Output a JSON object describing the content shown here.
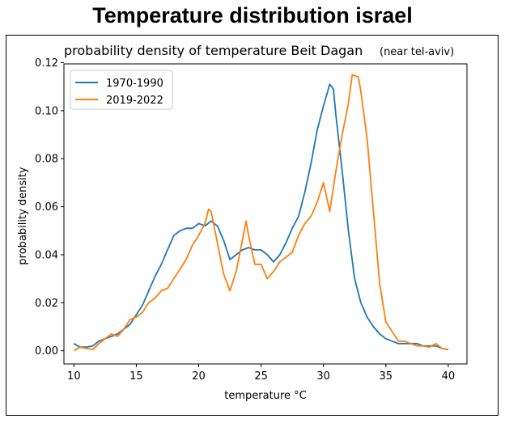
{
  "page": {
    "title": "Temperature distribution israel"
  },
  "chart_data": {
    "type": "line",
    "title": "probability density of temperature Beit Dagan",
    "subtitle_small": "(near tel-aviv)",
    "xlabel": "temperature °C",
    "ylabel": "probability density",
    "xlim": [
      9.2,
      41.5
    ],
    "ylim": [
      -0.0055,
      0.1195
    ],
    "xticks": [
      10,
      15,
      20,
      25,
      30,
      35,
      40
    ],
    "yticks": [
      0.0,
      0.02,
      0.04,
      0.06,
      0.08,
      0.1,
      0.12
    ],
    "ytick_labels": [
      "0.00",
      "0.02",
      "0.04",
      "0.06",
      "0.08",
      "0.10",
      "0.12"
    ],
    "grid": false,
    "legend_position": "top-left",
    "series": [
      {
        "name": "1970-1990",
        "color": "#1f77b4",
        "points": [
          [
            10,
            0.003
          ],
          [
            10.5,
            0.0015
          ],
          [
            11,
            0.0015
          ],
          [
            11.5,
            0.002
          ],
          [
            12,
            0.004
          ],
          [
            12.5,
            0.005
          ],
          [
            13,
            0.006
          ],
          [
            13.5,
            0.007
          ],
          [
            14,
            0.009
          ],
          [
            14.5,
            0.011
          ],
          [
            15,
            0.015
          ],
          [
            15.5,
            0.019
          ],
          [
            16,
            0.025
          ],
          [
            16.5,
            0.031
          ],
          [
            17,
            0.036
          ],
          [
            17.5,
            0.042
          ],
          [
            18,
            0.048
          ],
          [
            18.5,
            0.05
          ],
          [
            19,
            0.051
          ],
          [
            19.5,
            0.051
          ],
          [
            20,
            0.053
          ],
          [
            20.5,
            0.052
          ],
          [
            21,
            0.054
          ],
          [
            21.5,
            0.052
          ],
          [
            22,
            0.046
          ],
          [
            22.5,
            0.038
          ],
          [
            23,
            0.04
          ],
          [
            23.5,
            0.042
          ],
          [
            24,
            0.043
          ],
          [
            24.5,
            0.042
          ],
          [
            25,
            0.042
          ],
          [
            25.5,
            0.04
          ],
          [
            26,
            0.037
          ],
          [
            26.5,
            0.04
          ],
          [
            27,
            0.045
          ],
          [
            27.5,
            0.051
          ],
          [
            28,
            0.056
          ],
          [
            28.5,
            0.066
          ],
          [
            29,
            0.078
          ],
          [
            29.5,
            0.092
          ],
          [
            30,
            0.102
          ],
          [
            30.5,
            0.111
          ],
          [
            30.8,
            0.109
          ],
          [
            31,
            0.098
          ],
          [
            31.5,
            0.075
          ],
          [
            32,
            0.05
          ],
          [
            32.5,
            0.03
          ],
          [
            33,
            0.02
          ],
          [
            33.5,
            0.014
          ],
          [
            34,
            0.01
          ],
          [
            34.5,
            0.007
          ],
          [
            35,
            0.005
          ],
          [
            35.5,
            0.004
          ],
          [
            36,
            0.003
          ],
          [
            36.5,
            0.003
          ],
          [
            37,
            0.003
          ],
          [
            37.5,
            0.003
          ],
          [
            38,
            0.002
          ],
          [
            38.5,
            0.002
          ],
          [
            39,
            0.002
          ],
          [
            39.5,
            0.001
          ],
          [
            40,
            0.0005
          ]
        ]
      },
      {
        "name": "2019-2022",
        "color": "#ff7f0e",
        "points": [
          [
            10,
            0.0
          ],
          [
            10.5,
            0.0015
          ],
          [
            11,
            0.001
          ],
          [
            11.5,
            0.0005
          ],
          [
            12,
            0.003
          ],
          [
            12.5,
            0.005
          ],
          [
            13,
            0.007
          ],
          [
            13.5,
            0.006
          ],
          [
            14,
            0.009
          ],
          [
            14.5,
            0.013
          ],
          [
            15,
            0.014
          ],
          [
            15.5,
            0.016
          ],
          [
            16,
            0.02
          ],
          [
            16.5,
            0.022
          ],
          [
            17,
            0.025
          ],
          [
            17.5,
            0.026
          ],
          [
            18,
            0.03
          ],
          [
            18.5,
            0.034
          ],
          [
            19,
            0.038
          ],
          [
            19.5,
            0.044
          ],
          [
            20,
            0.048
          ],
          [
            20.5,
            0.053
          ],
          [
            20.8,
            0.059
          ],
          [
            21,
            0.058
          ],
          [
            21.5,
            0.045
          ],
          [
            22,
            0.032
          ],
          [
            22.5,
            0.025
          ],
          [
            23,
            0.033
          ],
          [
            23.5,
            0.046
          ],
          [
            23.8,
            0.054
          ],
          [
            24,
            0.048
          ],
          [
            24.5,
            0.036
          ],
          [
            25,
            0.036
          ],
          [
            25.5,
            0.03
          ],
          [
            26,
            0.033
          ],
          [
            26.5,
            0.037
          ],
          [
            27,
            0.039
          ],
          [
            27.5,
            0.041
          ],
          [
            28,
            0.048
          ],
          [
            28.5,
            0.053
          ],
          [
            29,
            0.056
          ],
          [
            29.5,
            0.062
          ],
          [
            30,
            0.07
          ],
          [
            30.5,
            0.058
          ],
          [
            31,
            0.075
          ],
          [
            31.5,
            0.09
          ],
          [
            32,
            0.103
          ],
          [
            32.3,
            0.115
          ],
          [
            32.8,
            0.114
          ],
          [
            33,
            0.108
          ],
          [
            33.5,
            0.088
          ],
          [
            34,
            0.058
          ],
          [
            34.5,
            0.028
          ],
          [
            35,
            0.012
          ],
          [
            35.5,
            0.008
          ],
          [
            36,
            0.004
          ],
          [
            36.5,
            0.004
          ],
          [
            37,
            0.003
          ],
          [
            37.5,
            0.002
          ],
          [
            38,
            0.002
          ],
          [
            38.5,
            0.0015
          ],
          [
            39,
            0.003
          ],
          [
            39.5,
            0.001
          ],
          [
            40,
            0.0005
          ]
        ]
      }
    ]
  }
}
